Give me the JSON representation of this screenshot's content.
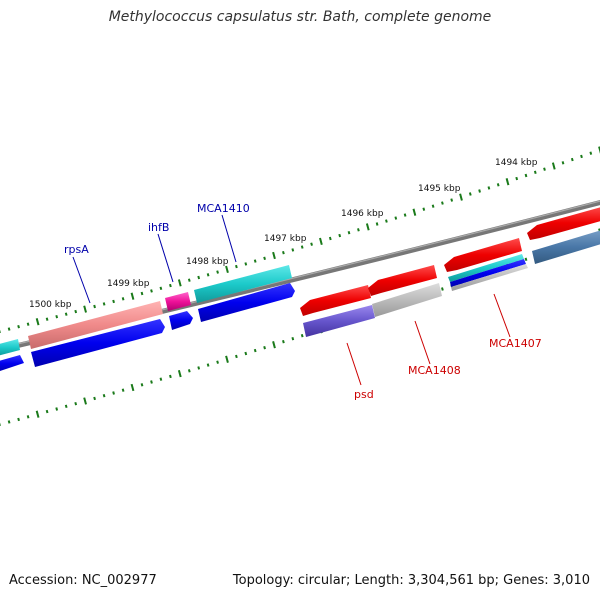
{
  "title": "Methylococcus capsulatus str. Bath, complete genome",
  "footer": {
    "accession": "Accession: NC_002977",
    "summary": "Topology: circular; Length: 3,304,561 bp; Genes: 3,010"
  },
  "scale_labels": [
    "1500 kbp",
    "1499 kbp",
    "1498 kbp",
    "1497 kbp",
    "1496 kbp",
    "1495 kbp",
    "1494 kbp"
  ],
  "gene_labels": {
    "top": [
      "rpsA",
      "ihfB",
      "MCA1410"
    ],
    "bottom": [
      "psd",
      "MCA1408",
      "MCA1407"
    ]
  },
  "colors": {
    "tick": "#1a7a1a",
    "backbone": "#777777",
    "top_label": "#0000aa",
    "bottom_label": "#cc0000"
  }
}
